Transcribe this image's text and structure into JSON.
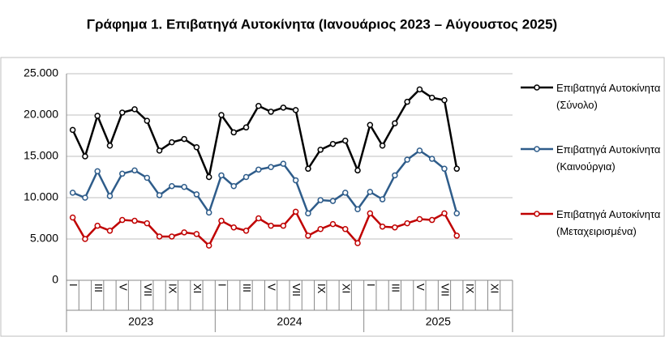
{
  "chart_data": {
    "type": "line",
    "title": "Γράφημα 1. Επιβατηγά Αυτοκίνητα (Ιανουάριος 2023 – Αύγουστος 2025)",
    "categories": [
      "I",
      null,
      "III",
      null,
      "V",
      null,
      "VII",
      null,
      "IX",
      null,
      "XI",
      null,
      "I",
      null,
      "III",
      null,
      "V",
      null,
      "VII",
      null,
      "IX",
      null,
      "XI",
      null,
      "I",
      null,
      "III",
      null,
      "V",
      null,
      "VII",
      null,
      "IX",
      null,
      "XI",
      null
    ],
    "groups": [
      "2023",
      "2024",
      "2025"
    ],
    "series": [
      {
        "name": "Επιβατηγά Αυτοκίνητα (Σύνολο)",
        "color": "#000000",
        "values": [
          18200,
          15000,
          19900,
          16300,
          20300,
          20700,
          19300,
          15700,
          16700,
          17100,
          16100,
          12500,
          20000,
          17900,
          18500,
          21100,
          20400,
          20900,
          20600,
          13500,
          15800,
          16500,
          16900,
          13300,
          18800,
          16300,
          19000,
          21600,
          23100,
          22100,
          21800,
          13500,
          null,
          null,
          null,
          null
        ]
      },
      {
        "name": "Επιβατηγά Αυτοκίνητα (Καινούργια)",
        "color": "#2e5c8a",
        "values": [
          10600,
          10000,
          13200,
          10200,
          12900,
          13300,
          12400,
          10300,
          11400,
          11300,
          10400,
          8200,
          12700,
          11400,
          12500,
          13400,
          13700,
          14100,
          12100,
          8100,
          9700,
          9600,
          10600,
          8600,
          10700,
          9800,
          12700,
          14600,
          15700,
          14700,
          13500,
          8100,
          null,
          null,
          null,
          null
        ]
      },
      {
        "name": "Επιβατηγά Αυτοκίνητα (Μεταχειρισμένα)",
        "color": "#c00000",
        "values": [
          7600,
          5000,
          6600,
          6000,
          7300,
          7200,
          6900,
          5300,
          5300,
          5800,
          5600,
          4200,
          7200,
          6400,
          6000,
          7500,
          6600,
          6600,
          8300,
          5400,
          6200,
          6800,
          6200,
          4500,
          8100,
          6500,
          6400,
          6900,
          7400,
          7300,
          8100,
          5400,
          null,
          null,
          null,
          null
        ]
      }
    ],
    "ylim": [
      0,
      25000
    ],
    "yticks": [
      0,
      {
        "value": 5000,
        "label": "5.000"
      },
      {
        "value": 10000,
        "label": "10.000"
      },
      {
        "value": 15000,
        "label": "15.000"
      },
      {
        "value": 20000,
        "label": "20.000"
      },
      {
        "value": 25000,
        "label": "25.000"
      }
    ],
    "grid": true
  }
}
